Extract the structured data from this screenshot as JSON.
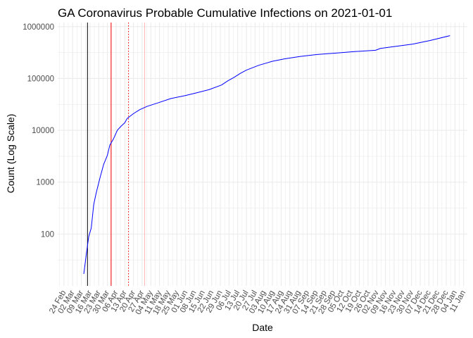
{
  "chart_data": {
    "type": "line",
    "title": "GA Coronavirus Probable Cumulative Infections on 2021-01-01",
    "xlabel": "Date",
    "ylabel": "Count (Log Scale)",
    "y_scale": "log10",
    "grid": true,
    "background": "#ffffff",
    "grid_color": "#ebebeb",
    "xlim": [
      "2020-02-19",
      "2021-01-14"
    ],
    "ylim": [
      10,
      1200000
    ],
    "x_ticks": [
      "2020-02-24",
      "2020-03-02",
      "2020-03-09",
      "2020-03-16",
      "2020-03-23",
      "2020-03-30",
      "2020-04-06",
      "2020-04-13",
      "2020-04-20",
      "2020-04-27",
      "2020-05-04",
      "2020-05-11",
      "2020-05-18",
      "2020-05-25",
      "2020-06-01",
      "2020-06-08",
      "2020-06-15",
      "2020-06-22",
      "2020-06-29",
      "2020-07-06",
      "2020-07-13",
      "2020-07-20",
      "2020-07-27",
      "2020-08-03",
      "2020-08-10",
      "2020-08-17",
      "2020-08-24",
      "2020-08-31",
      "2020-09-07",
      "2020-09-14",
      "2020-09-21",
      "2020-09-28",
      "2020-10-05",
      "2020-10-12",
      "2020-10-19",
      "2020-10-26",
      "2020-11-02",
      "2020-11-09",
      "2020-11-16",
      "2020-11-23",
      "2020-11-30",
      "2020-12-07",
      "2020-12-14",
      "2020-12-21",
      "2020-12-28",
      "2021-01-04",
      "2021-01-11"
    ],
    "x_tick_labels": [
      "24 Feb",
      "02 Mar",
      "09 Mar",
      "16 Mar",
      "23 Mar",
      "30 Mar",
      "06 Apr",
      "13 Apr",
      "20 Apr",
      "27 Apr",
      "04 May",
      "11 May",
      "18 May",
      "25 May",
      "01 Jun",
      "08 Jun",
      "15 Jun",
      "22 Jun",
      "29 Jun",
      "06 Jul",
      "13 Jul",
      "20 Jul",
      "27 Jul",
      "03 Aug",
      "10 Aug",
      "17 Aug",
      "24 Aug",
      "31 Aug",
      "07 Sep",
      "14 Sep",
      "21 Sep",
      "28 Sep",
      "05 Oct",
      "12 Oct",
      "19 Oct",
      "26 Oct",
      "02 Nov",
      "09 Nov",
      "16 Nov",
      "23 Nov",
      "30 Nov",
      "07 Dec",
      "14 Dec",
      "21 Dec",
      "28 Dec",
      "04 Jan",
      "11 Jan"
    ],
    "y_ticks": [
      100,
      1000,
      10000,
      100000,
      1000000
    ],
    "y_tick_labels": [
      "100",
      "1000",
      "10000",
      "100000",
      "1000000"
    ],
    "series": [
      {
        "color": "#0000ff",
        "points": [
          [
            "2020-03-11",
            17
          ],
          [
            "2020-03-13",
            40
          ],
          [
            "2020-03-15",
            90
          ],
          [
            "2020-03-17",
            130
          ],
          [
            "2020-03-19",
            370
          ],
          [
            "2020-03-21",
            620
          ],
          [
            "2020-03-24",
            1200
          ],
          [
            "2020-03-27",
            2200
          ],
          [
            "2020-03-30",
            3300
          ],
          [
            "2020-04-01",
            5200
          ],
          [
            "2020-04-04",
            6900
          ],
          [
            "2020-04-07",
            10000
          ],
          [
            "2020-04-10",
            12000
          ],
          [
            "2020-04-13",
            14000
          ],
          [
            "2020-04-15",
            17000
          ],
          [
            "2020-04-20",
            21000
          ],
          [
            "2020-04-25",
            25000
          ],
          [
            "2020-05-01",
            29000
          ],
          [
            "2020-05-10",
            34000
          ],
          [
            "2020-05-20",
            41000
          ],
          [
            "2020-06-01",
            47000
          ],
          [
            "2020-06-10",
            53000
          ],
          [
            "2020-06-20",
            61000
          ],
          [
            "2020-06-30",
            75000
          ],
          [
            "2020-07-05",
            90000
          ],
          [
            "2020-07-10",
            105000
          ],
          [
            "2020-07-15",
            125000
          ],
          [
            "2020-07-20",
            145000
          ],
          [
            "2020-07-30",
            180000
          ],
          [
            "2020-08-10",
            215000
          ],
          [
            "2020-08-20",
            240000
          ],
          [
            "2020-09-01",
            265000
          ],
          [
            "2020-09-15",
            290000
          ],
          [
            "2020-10-01",
            310000
          ],
          [
            "2020-10-15",
            330000
          ],
          [
            "2020-11-01",
            350000
          ],
          [
            "2020-11-05",
            380000
          ],
          [
            "2020-11-15",
            410000
          ],
          [
            "2020-12-01",
            460000
          ],
          [
            "2020-12-15",
            540000
          ],
          [
            "2020-12-31",
            670000
          ]
        ]
      }
    ],
    "vertical_lines": [
      {
        "x": "2020-03-14",
        "color": "#000000",
        "style": "solid"
      },
      {
        "x": "2020-04-02",
        "color": "#ff0000",
        "style": "solid"
      },
      {
        "x": "2020-04-16",
        "color": "#ff0000",
        "style": "dotted"
      },
      {
        "x": "2020-04-29",
        "color": "#ffb6b6",
        "style": "solid"
      }
    ]
  }
}
